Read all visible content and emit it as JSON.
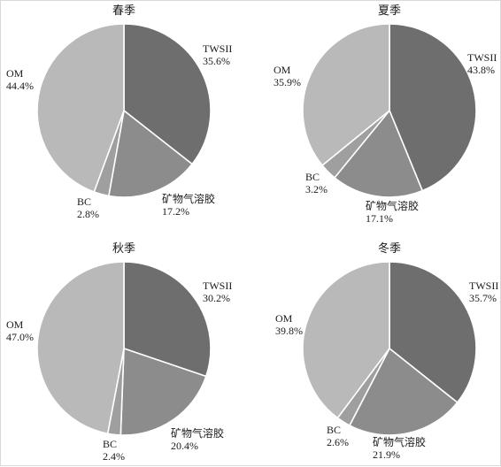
{
  "chart_data": [
    {
      "type": "pie",
      "title": "春季",
      "slices": [
        {
          "label": "TWSII",
          "value": 35.6,
          "value_text": "35.6%",
          "color": "#6e6e6e"
        },
        {
          "label": "矿物气溶胶",
          "value": 17.2,
          "value_text": "17.2%",
          "color": "#8c8c8c"
        },
        {
          "label": "BC",
          "value": 2.8,
          "value_text": "2.8%",
          "color": "#9f9f9f"
        },
        {
          "label": "OM",
          "value": 44.4,
          "value_text": "44.4%",
          "color": "#b9b9b9"
        }
      ]
    },
    {
      "type": "pie",
      "title": "夏季",
      "slices": [
        {
          "label": "TWSII",
          "value": 43.8,
          "value_text": "43.8%",
          "color": "#6e6e6e"
        },
        {
          "label": "矿物气溶胶",
          "value": 17.1,
          "value_text": "17.1%",
          "color": "#8c8c8c"
        },
        {
          "label": "BC",
          "value": 3.2,
          "value_text": "3.2%",
          "color": "#9f9f9f"
        },
        {
          "label": "OM",
          "value": 35.9,
          "value_text": "35.9%",
          "color": "#b9b9b9"
        }
      ]
    },
    {
      "type": "pie",
      "title": "秋季",
      "slices": [
        {
          "label": "TWSII",
          "value": 30.2,
          "value_text": "30.2%",
          "color": "#6e6e6e"
        },
        {
          "label": "矿物气溶胶",
          "value": 20.4,
          "value_text": "20.4%",
          "color": "#8c8c8c"
        },
        {
          "label": "BC",
          "value": 2.4,
          "value_text": "2.4%",
          "color": "#9f9f9f"
        },
        {
          "label": "OM",
          "value": 47.0,
          "value_text": "47.0%",
          "color": "#b9b9b9"
        }
      ]
    },
    {
      "type": "pie",
      "title": "冬季",
      "slices": [
        {
          "label": "TWSII",
          "value": 35.7,
          "value_text": "35.7%",
          "color": "#6e6e6e"
        },
        {
          "label": "矿物气溶胶",
          "value": 21.9,
          "value_text": "21.9%",
          "color": "#8c8c8c"
        },
        {
          "label": "BC",
          "value": 2.6,
          "value_text": "2.6%",
          "color": "#9f9f9f"
        },
        {
          "label": "OM",
          "value": 39.8,
          "value_text": "39.8%",
          "color": "#b9b9b9"
        }
      ]
    }
  ]
}
